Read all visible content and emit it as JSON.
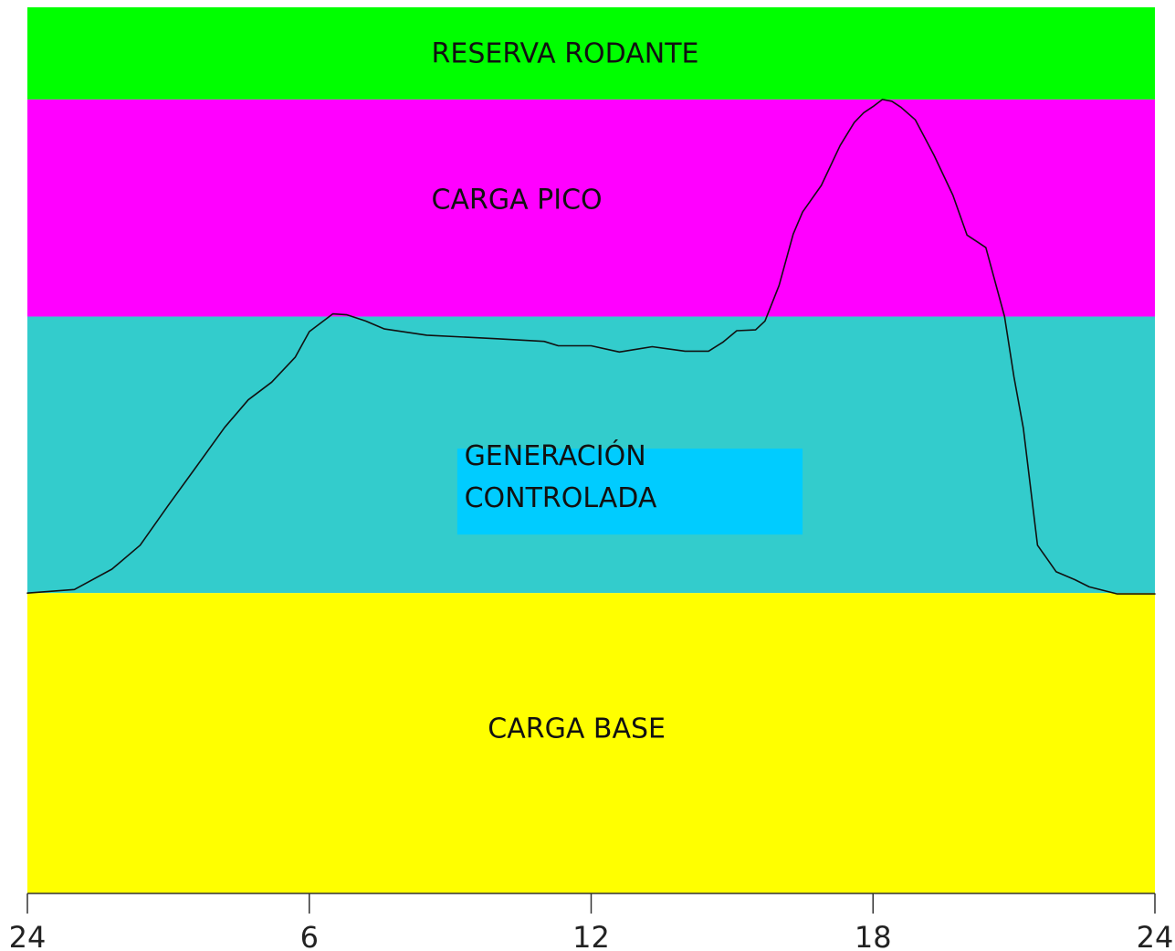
{
  "chart_data": {
    "type": "area",
    "title": "",
    "xlabel": "",
    "ylabel": "",
    "xlim": [
      0,
      24
    ],
    "ylim": [
      0,
      100
    ],
    "x_ticks": [
      0,
      6,
      12,
      18,
      24
    ],
    "x_tick_labels": [
      "24",
      "6",
      "12",
      "18",
      "24"
    ],
    "grid": false,
    "bands": [
      {
        "name": "RESERVA RODANTE",
        "label_lines": [
          "RESERVA RODANTE"
        ],
        "from": 89.6,
        "to": 100,
        "color": "#00ff00",
        "label_pos": [
          8.6,
          94.8
        ]
      },
      {
        "name": "CARGA PICO",
        "label_lines": [
          "CARGA PICO"
        ],
        "from": 65.1,
        "to": 89.6,
        "color": "#ff00ff",
        "label_pos": [
          8.6,
          78.3
        ]
      },
      {
        "name": "GENERACIÓN CONTROLADA",
        "label_lines": [
          "GENERACIÓN",
          "CONTROLADA"
        ],
        "from": 33.9,
        "to": 65.1,
        "color": "#33cccc",
        "label_pos": [
          9.3,
          47
        ],
        "label_box": {
          "color": "#00ccff",
          "x": [
            9.15,
            16.5
          ],
          "y": [
            40.5,
            50.2
          ]
        }
      },
      {
        "name": "CARGA BASE",
        "label_lines": [
          "CARGA BASE"
        ],
        "from": 0,
        "to": 33.9,
        "color": "#ffff00",
        "label_pos": [
          9.8,
          18.6
        ]
      }
    ],
    "series": [
      {
        "x": [
          0,
          1.0,
          1.8,
          2.4,
          3.0,
          3.6,
          4.2,
          4.7,
          5.2,
          5.7,
          6.0,
          6.3,
          6.5,
          6.8,
          7.2,
          7.6,
          8.5,
          10.0,
          11.0,
          11.3,
          12.0,
          12.6,
          13.3,
          14.0,
          14.5,
          14.8,
          15.1,
          15.5,
          15.7,
          16.0,
          16.3,
          16.5,
          16.9,
          17.3,
          17.6,
          17.8,
          18.0,
          18.2,
          18.4,
          18.6,
          18.9,
          19.3,
          19.7,
          20.0,
          20.4,
          20.8,
          21.0,
          21.2,
          21.5,
          21.9,
          22.3,
          22.6,
          23.2,
          24
        ],
        "y": [
          33.9,
          34.3,
          36.6,
          39.3,
          43.8,
          48.2,
          52.6,
          55.7,
          57.7,
          60.5,
          63.4,
          64.6,
          65.4,
          65.3,
          64.6,
          63.7,
          63.0,
          62.6,
          62.3,
          61.8,
          61.8,
          61.1,
          61.7,
          61.2,
          61.2,
          62.2,
          63.5,
          63.6,
          64.6,
          68.6,
          74.4,
          76.9,
          79.9,
          84.4,
          87.0,
          88.1,
          88.8,
          89.6,
          89.4,
          88.7,
          87.3,
          83.3,
          78.8,
          74.3,
          72.9,
          65.1,
          58.3,
          52.5,
          39.3,
          36.3,
          35.4,
          34.6,
          33.8,
          33.8
        ],
        "color": "#111111"
      }
    ]
  }
}
